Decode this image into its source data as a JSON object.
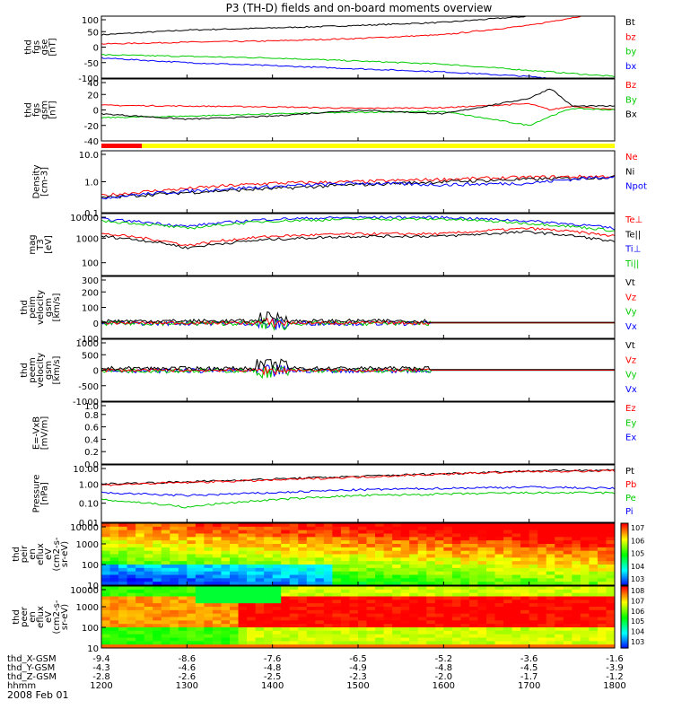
{
  "title": "P3 (TH-D) fields and on-board moments overview",
  "date_label": "2008 Feb 01",
  "chart_data": [
    {
      "type": "line",
      "panel": "fgs_gse",
      "ylabel": [
        "thd",
        "fgs",
        "gse",
        "[nT]"
      ],
      "ylim": [
        -100,
        100
      ],
      "y_ticks": [
        100,
        50,
        0,
        -50,
        -100
      ],
      "x": [
        1200,
        1300,
        1400,
        1500,
        1600,
        1700,
        1800
      ],
      "series": [
        {
          "name": "Bt",
          "color": "#000000",
          "values": [
            40,
            55,
            62,
            70,
            80,
            100,
            125
          ]
        },
        {
          "name": "bz",
          "color": "#ff0000",
          "values": [
            10,
            16,
            20,
            28,
            40,
            70,
            120
          ]
        },
        {
          "name": "by",
          "color": "#00cc00",
          "values": [
            -25,
            -30,
            -35,
            -45,
            -55,
            -75,
            -95
          ]
        },
        {
          "name": "bx",
          "color": "#0000ff",
          "values": [
            -35,
            -50,
            -60,
            -70,
            -80,
            -95,
            -115
          ]
        }
      ]
    },
    {
      "type": "line",
      "panel": "fgs_gsm_dc",
      "ylabel": [
        "thd",
        "fgs",
        "gsm",
        "[nT]"
      ],
      "ylim": [
        -40,
        40
      ],
      "y_ticks": [
        40,
        20,
        0,
        -20,
        -40
      ],
      "x": [
        1200,
        1300,
        1400,
        1500,
        1600,
        1700,
        1725,
        1750,
        1800
      ],
      "series": [
        {
          "name": "Bz",
          "color": "#ff0000",
          "values": [
            6,
            5,
            4,
            2,
            3,
            8,
            0,
            5,
            0
          ]
        },
        {
          "name": "By",
          "color": "#00cc00",
          "values": [
            -10,
            -8,
            -5,
            -3,
            -2,
            -20,
            -8,
            2,
            0
          ]
        },
        {
          "name": "Bx",
          "color": "#000000",
          "values": [
            -5,
            -12,
            -8,
            0,
            -5,
            15,
            28,
            5,
            5
          ]
        }
      ]
    },
    {
      "type": "line",
      "panel": "density",
      "ylabel": [
        "Density",
        "[cm-3]"
      ],
      "log": true,
      "ylim": [
        0.1,
        10
      ],
      "y_ticks": [
        "10.0",
        "1.0",
        "0.1"
      ],
      "x": [
        1200,
        1300,
        1400,
        1500,
        1600,
        1700,
        1800
      ],
      "series": [
        {
          "name": "Ne",
          "color": "#ff0000",
          "values": [
            0.35,
            0.6,
            0.9,
            1.0,
            1.2,
            1.4,
            1.5
          ]
        },
        {
          "name": "Ni",
          "color": "#000000",
          "values": [
            0.3,
            0.45,
            0.6,
            0.8,
            1.0,
            1.2,
            1.4
          ]
        },
        {
          "name": "Npot",
          "color": "#0000ff",
          "values": [
            0.3,
            0.5,
            0.7,
            0.9,
            0.8,
            0.9,
            1.5
          ]
        }
      ]
    },
    {
      "type": "line",
      "panel": "temperature",
      "ylabel": [
        "mag",
        "T3",
        "[eV]"
      ],
      "log": true,
      "ylim": [
        30,
        10000
      ],
      "y_ticks": [
        "10000",
        "1000",
        "100"
      ],
      "x": [
        1200,
        1300,
        1400,
        1500,
        1600,
        1700,
        1800
      ],
      "series": [
        {
          "name": "Te⊥",
          "color": "#ff0000",
          "values": [
            1500,
            500,
            1200,
            1500,
            1500,
            2500,
            1200
          ]
        },
        {
          "name": "Te||",
          "color": "#000000",
          "values": [
            1200,
            400,
            900,
            1200,
            1200,
            1800,
            700
          ]
        },
        {
          "name": "Ti⊥",
          "color": "#0000ff",
          "values": [
            6000,
            3000,
            6000,
            7000,
            7000,
            5000,
            2500
          ]
        },
        {
          "name": "Ti||",
          "color": "#00cc00",
          "values": [
            5000,
            2500,
            5000,
            6000,
            6000,
            4000,
            2000
          ]
        }
      ]
    },
    {
      "type": "line",
      "panel": "peim_velocity",
      "ylabel": [
        "thd",
        "peim",
        "velocity",
        "gsm",
        "[km/s]"
      ],
      "ylim": [
        -100,
        300
      ],
      "y_ticks": [
        300,
        200,
        100,
        0,
        -100
      ],
      "series": [
        {
          "name": "Vt",
          "color": "#000000"
        },
        {
          "name": "Vz",
          "color": "#ff0000"
        },
        {
          "name": "Vy",
          "color": "#00cc00"
        },
        {
          "name": "Vx",
          "color": "#0000ff"
        }
      ]
    },
    {
      "type": "line",
      "panel": "peem_velocity",
      "ylabel": [
        "thd",
        "peem",
        "velocity",
        "gsm",
        "[km/s]"
      ],
      "ylim": [
        -1000,
        1000
      ],
      "y_ticks": [
        1000,
        500,
        0,
        -500,
        -1000
      ],
      "series": [
        {
          "name": "Vt",
          "color": "#000000"
        },
        {
          "name": "Vz",
          "color": "#ff0000"
        },
        {
          "name": "Vy",
          "color": "#00cc00"
        },
        {
          "name": "Vx",
          "color": "#0000ff"
        }
      ]
    },
    {
      "type": "line",
      "panel": "efield",
      "ylabel": [
        "E=-VxB",
        "[mV/m]"
      ],
      "ylim": [
        0,
        1
      ],
      "y_ticks": [
        "1.0",
        "0.8",
        "0.6",
        "0.4",
        "0.2",
        "0.0"
      ],
      "series": [
        {
          "name": "Ez",
          "color": "#ff0000"
        },
        {
          "name": "Ey",
          "color": "#00cc00"
        },
        {
          "name": "Ex",
          "color": "#0000ff"
        }
      ]
    },
    {
      "type": "line",
      "panel": "pressure",
      "ylabel": [
        "Pressure",
        "[nPa]"
      ],
      "log": true,
      "ylim": [
        0.01,
        10
      ],
      "y_ticks": [
        "10.00",
        "1.00",
        "0.10",
        "0.01"
      ],
      "x": [
        1200,
        1300,
        1400,
        1500,
        1600,
        1700,
        1800
      ],
      "series": [
        {
          "name": "Pt",
          "color": "#000000",
          "values": [
            1.0,
            1.3,
            1.8,
            2.5,
            3.5,
            4.8,
            5.5
          ]
        },
        {
          "name": "Pb",
          "color": "#ff0000",
          "values": [
            0.9,
            1.2,
            1.6,
            2.3,
            3.3,
            4.5,
            5.0
          ]
        },
        {
          "name": "Pe",
          "color": "#00cc00",
          "values": [
            0.15,
            0.06,
            0.15,
            0.25,
            0.3,
            0.35,
            0.35
          ]
        },
        {
          "name": "Pi",
          "color": "#0000ff",
          "values": [
            0.35,
            0.25,
            0.35,
            0.5,
            0.6,
            0.7,
            0.6
          ]
        }
      ]
    },
    {
      "type": "heatmap",
      "panel": "peir_en_eflux",
      "ylabel": [
        "thd",
        "peir",
        "en",
        "eflux",
        "eV",
        "(cm^2-s-",
        "sr-eV)"
      ],
      "y_ticks": [
        "10000",
        "1000",
        "100",
        "10"
      ],
      "colorbar_ticks": [
        "10^7",
        "10^6",
        "10^5",
        "10^4",
        "10^3"
      ]
    },
    {
      "type": "heatmap",
      "panel": "peer_en_eflux",
      "ylabel": [
        "thd",
        "peer",
        "en",
        "eflux",
        "eV",
        "(cm^2-s-",
        "sr-eV)"
      ],
      "y_ticks": [
        "10000",
        "1000",
        "100",
        "10"
      ],
      "colorbar_ticks": [
        "10^8",
        "10^7",
        "10^6",
        "10^5",
        "10^4",
        "10^3"
      ]
    }
  ],
  "xaxis": {
    "row_labels": [
      "thd_X-GSM",
      "thd_Y-GSM",
      "thd_Z-GSM",
      "hhmm"
    ],
    "columns": [
      [
        "-9.4",
        "-4.3",
        "-2.8",
        "1200"
      ],
      [
        "-8.6",
        "-4.6",
        "-2.6",
        "1300"
      ],
      [
        "-7.6",
        "-4.8",
        "-2.5",
        "1400"
      ],
      [
        "-6.5",
        "-4.9",
        "-2.3",
        "1500"
      ],
      [
        "-5.2",
        "-4.8",
        "-2.0",
        "1600"
      ],
      [
        "-3.6",
        "-4.5",
        "-1.7",
        "1700"
      ],
      [
        "-1.6",
        "-3.9",
        "-1.2",
        "1800"
      ]
    ]
  }
}
